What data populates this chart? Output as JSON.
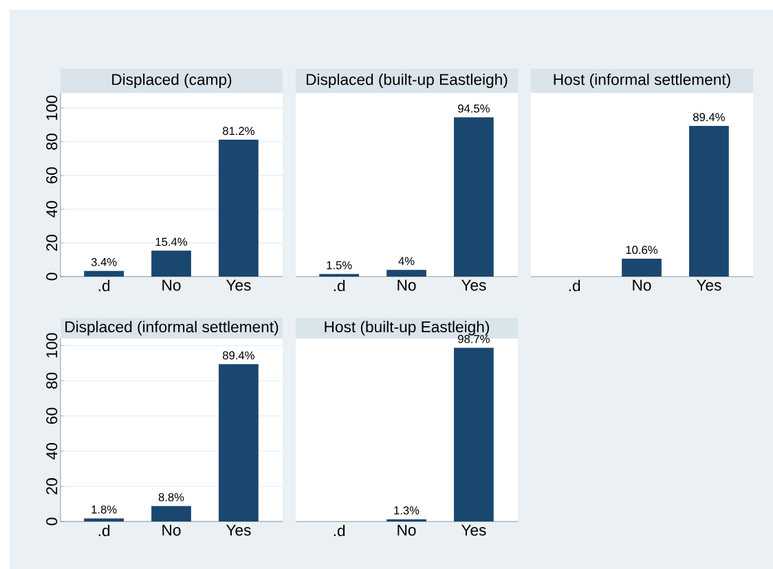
{
  "chart_data": [
    {
      "type": "bar",
      "title": "Displaced (camp)",
      "categories": [
        ".d",
        "No",
        "Yes"
      ],
      "values": [
        3.4,
        15.4,
        81.2
      ],
      "value_labels": [
        "3.4%",
        "15.4%",
        "81.2%"
      ],
      "color": "#1a476f",
      "ylim": [
        0,
        109
      ],
      "yticks": [
        0,
        20,
        40,
        60,
        80,
        100
      ],
      "grid": "y"
    },
    {
      "type": "bar",
      "title": "Displaced (built-up Eastleigh)",
      "categories": [
        ".d",
        "No",
        "Yes"
      ],
      "values": [
        1.5,
        4,
        94.5
      ],
      "value_labels": [
        "1.5%",
        "4%",
        "94.5%"
      ],
      "color": "#1a476f",
      "ylim": [
        0,
        109
      ],
      "yticks": [
        0,
        20,
        40,
        60,
        80,
        100
      ],
      "grid": "y",
      "tick_labels": "x"
    },
    {
      "type": "bar",
      "title": "Host (informal settlement)",
      "categories": [
        ".d",
        "No",
        "Yes"
      ],
      "values": [
        null,
        10.6,
        89.4
      ],
      "value_labels": [
        null,
        "10.6%",
        "89.4%"
      ],
      "color": "#1a476f",
      "ylim": [
        0,
        109
      ],
      "yticks": [
        0,
        20,
        40,
        60,
        80,
        100
      ],
      "grid": "y",
      "tick_labels": "x"
    },
    {
      "type": "bar",
      "title": "Displaced (informal settlement)",
      "categories": [
        ".d",
        "No",
        "Yes"
      ],
      "values": [
        1.8,
        8.8,
        89.4
      ],
      "value_labels": [
        "1.8%",
        "8.8%",
        "89.4%"
      ],
      "color": "#1a476f",
      "ylim": [
        0,
        104
      ],
      "yticks": [
        0,
        20,
        40,
        60,
        80,
        100
      ],
      "grid": "y"
    },
    {
      "type": "bar",
      "title": "Host (built-up Eastleigh)",
      "categories": [
        ".d",
        "No",
        "Yes"
      ],
      "values": [
        null,
        1.3,
        98.7
      ],
      "value_labels": [
        null,
        "1.3%",
        "98.7%"
      ],
      "color": "#1a476f",
      "ylim": [
        0,
        104
      ],
      "yticks": [
        0,
        20,
        40,
        60,
        80,
        100
      ],
      "grid": "y",
      "tick_labels": "x"
    }
  ]
}
